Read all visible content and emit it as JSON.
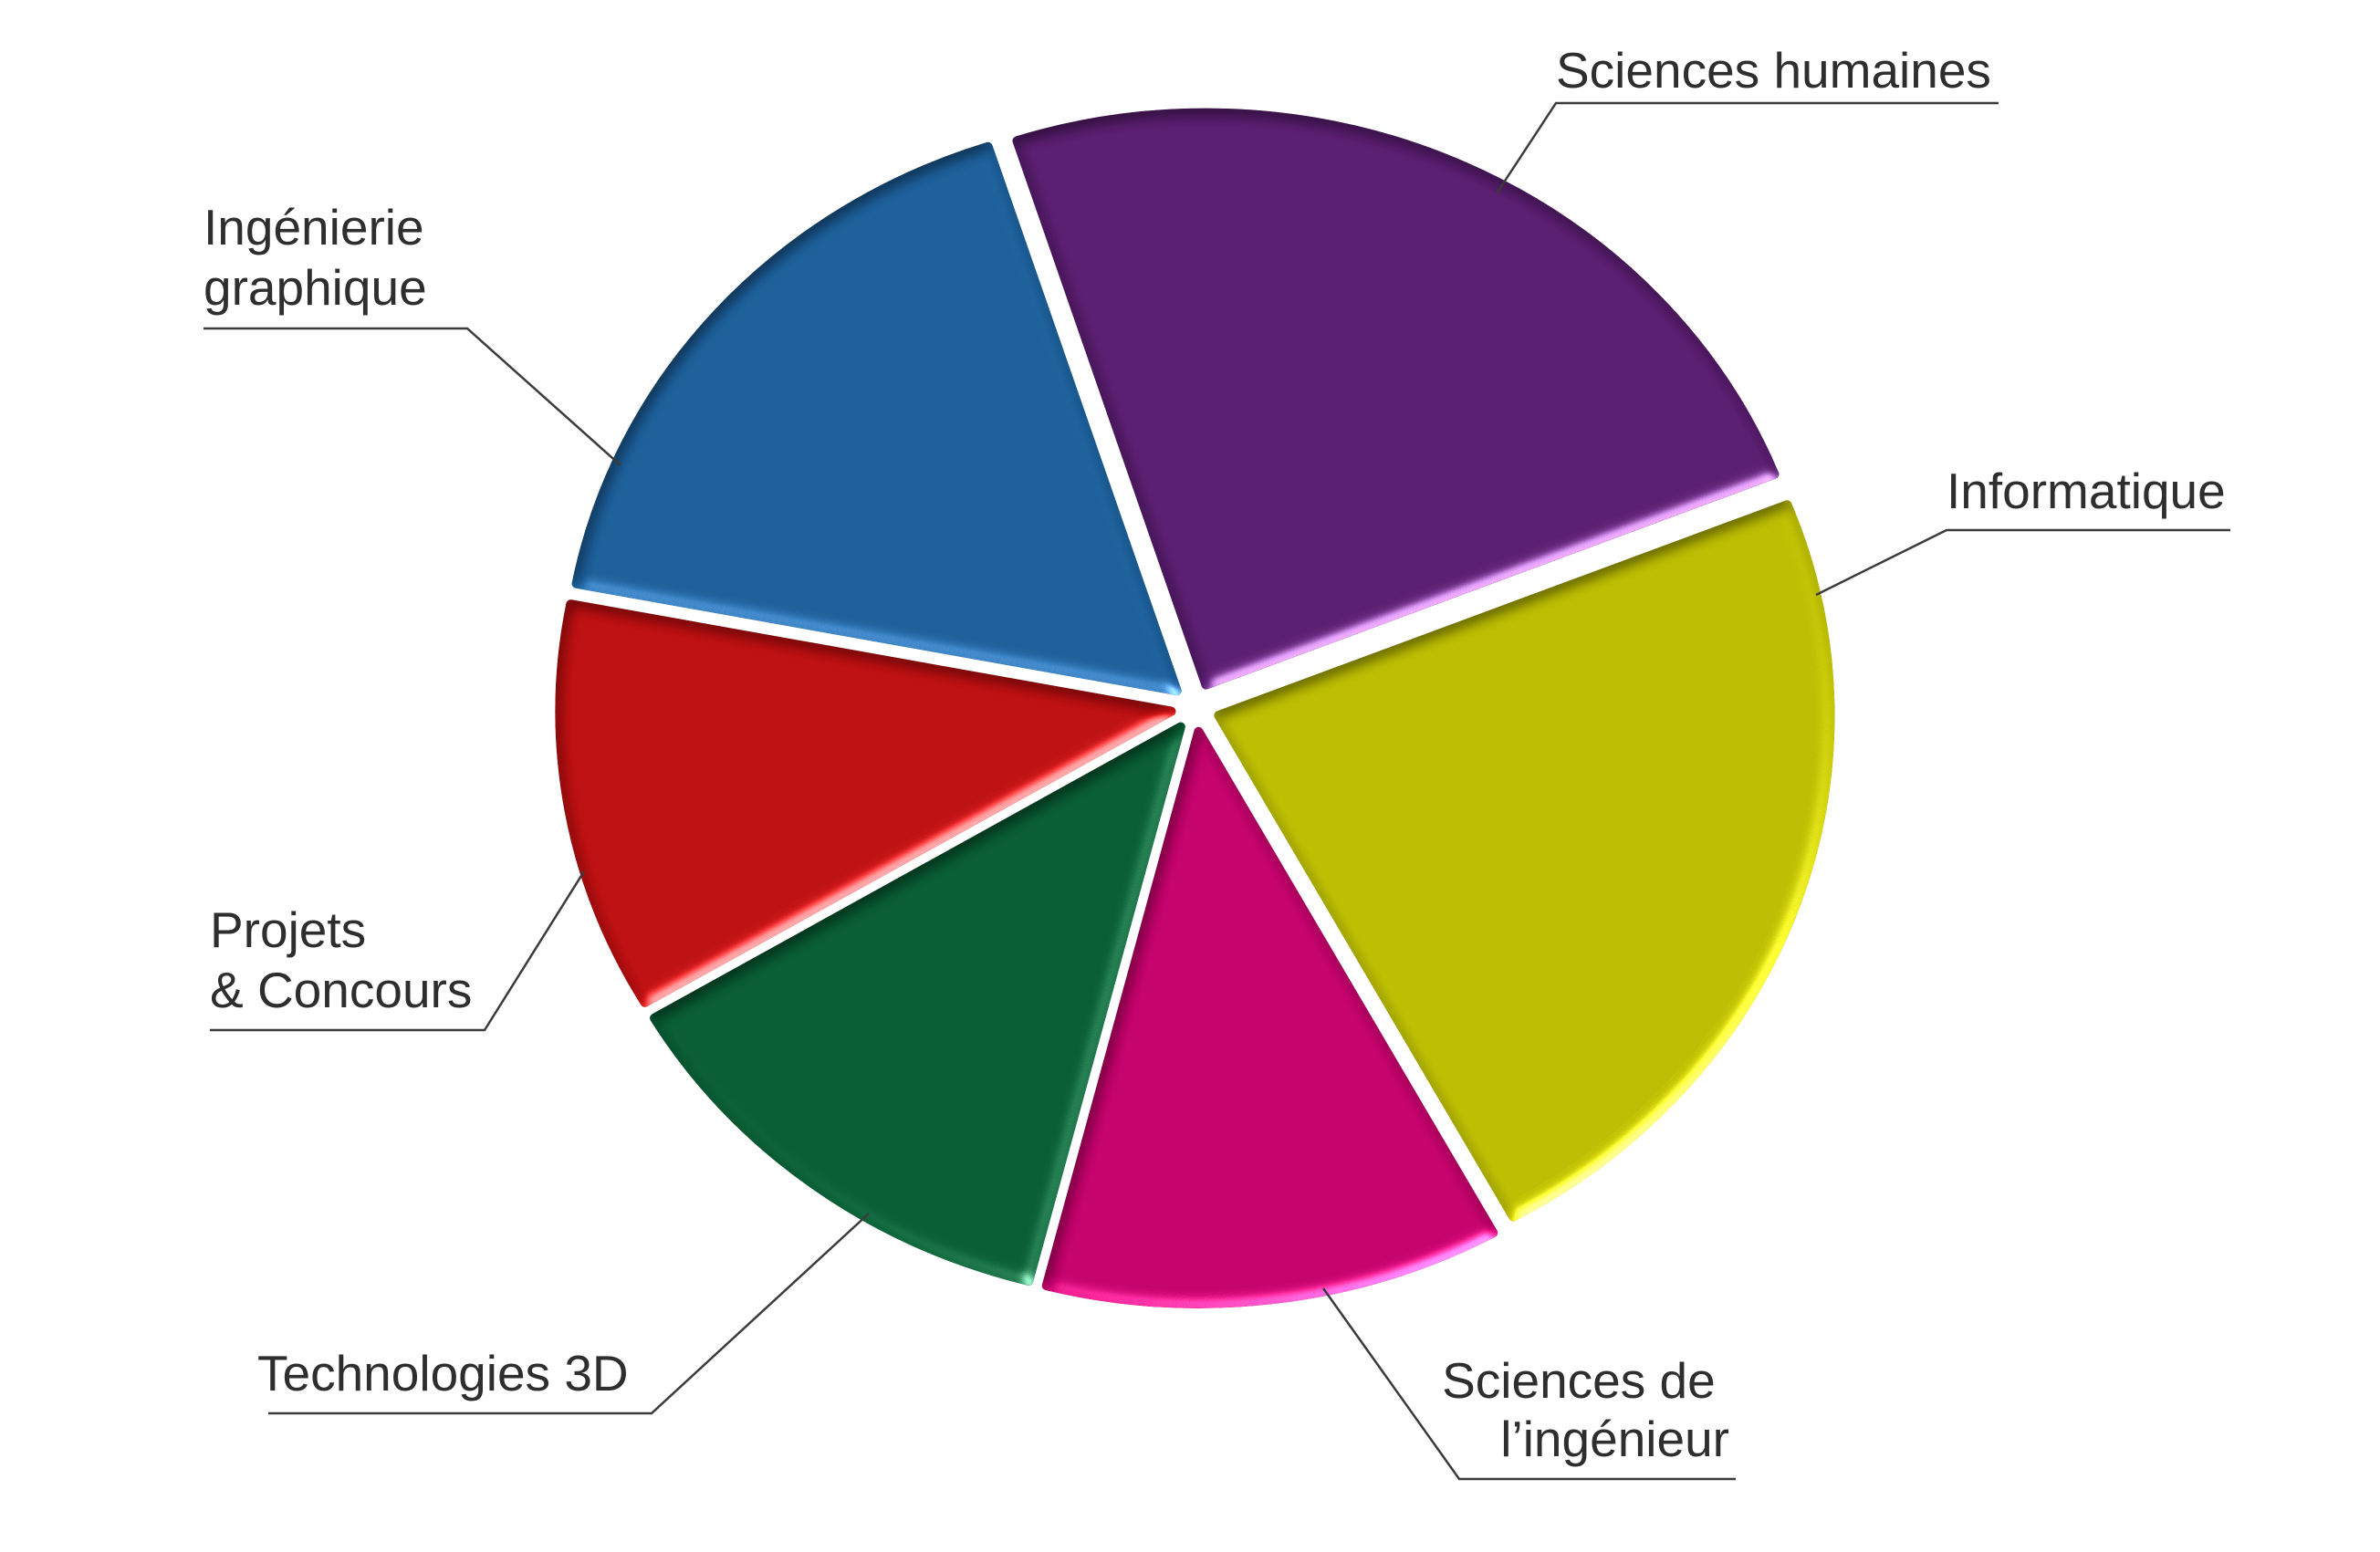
{
  "chart_data": {
    "type": "pie",
    "categories": [
      [
        "Sciences humaines"
      ],
      [
        "Informatique"
      ],
      [
        "Sciences de",
        "l’ingénieur"
      ],
      [
        "Technologies 3D"
      ],
      [
        "Projets",
        "& Concours"
      ],
      [
        "Ingénierie",
        "graphique"
      ]
    ],
    "values": [
      24,
      23,
      12,
      12.5,
      11.5,
      17
    ],
    "colors": [
      "#581c6e",
      "#bbbc00",
      "#c2006a",
      "#075b32",
      "#bc0e10",
      "#1b5d98"
    ]
  }
}
